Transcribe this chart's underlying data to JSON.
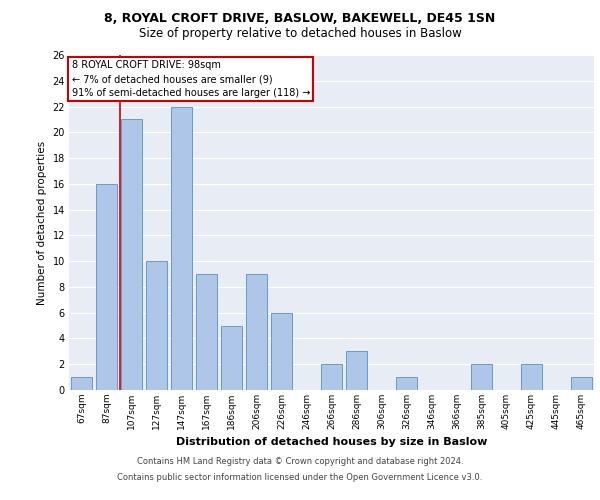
{
  "title_line1": "8, ROYAL CROFT DRIVE, BASLOW, BAKEWELL, DE45 1SN",
  "title_line2": "Size of property relative to detached houses in Baslow",
  "xlabel": "Distribution of detached houses by size in Baslow",
  "ylabel": "Number of detached properties",
  "categories": [
    "67sqm",
    "87sqm",
    "107sqm",
    "127sqm",
    "147sqm",
    "167sqm",
    "186sqm",
    "206sqm",
    "226sqm",
    "246sqm",
    "266sqm",
    "286sqm",
    "306sqm",
    "326sqm",
    "346sqm",
    "366sqm",
    "385sqm",
    "405sqm",
    "425sqm",
    "445sqm",
    "465sqm"
  ],
  "values": [
    1,
    16,
    21,
    10,
    22,
    9,
    5,
    9,
    6,
    0,
    2,
    3,
    0,
    1,
    0,
    0,
    2,
    0,
    2,
    0,
    1
  ],
  "bar_color": "#aec6e8",
  "bar_edge_color": "#5a8fc0",
  "annotation_title": "8 ROYAL CROFT DRIVE: 98sqm",
  "annotation_line1": "← 7% of detached houses are smaller (9)",
  "annotation_line2": "91% of semi-detached houses are larger (118) →",
  "annotation_box_color": "#ffffff",
  "annotation_box_edge_color": "#cc0000",
  "reference_line_color": "#cc0000",
  "reference_line_xindex": 1.55,
  "ylim": [
    0,
    26
  ],
  "yticks": [
    0,
    2,
    4,
    6,
    8,
    10,
    12,
    14,
    16,
    18,
    20,
    22,
    24,
    26
  ],
  "footer_line1": "Contains HM Land Registry data © Crown copyright and database right 2024.",
  "footer_line2": "Contains public sector information licensed under the Open Government Licence v3.0.",
  "background_color": "#e8edf5",
  "grid_color": "#ffffff",
  "fig_width": 6.0,
  "fig_height": 5.0,
  "dpi": 100
}
